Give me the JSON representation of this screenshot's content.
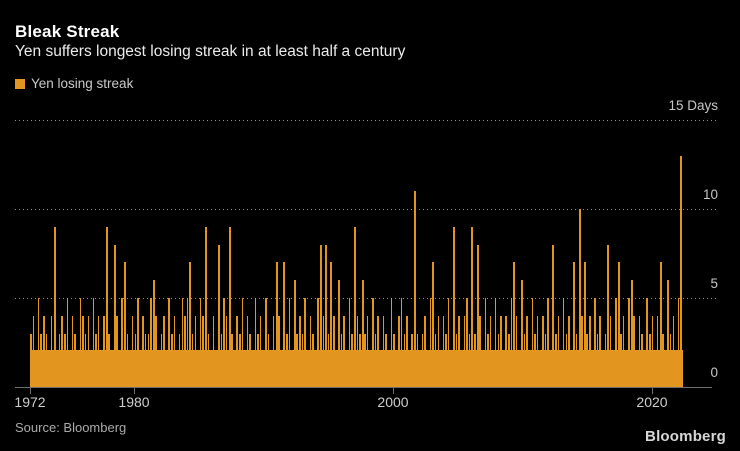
{
  "chart_data": {
    "type": "bar",
    "title": "Bleak Streak",
    "subtitle": "Yen suffers longest losing streak in at least half a century",
    "legend": [
      {
        "label": "Yen losing streak",
        "color": "#e2961f"
      }
    ],
    "x_axis": {
      "tick_labels": [
        "1972",
        "1980",
        "2000",
        "2020"
      ],
      "tick_years": [
        1972,
        1980,
        2000,
        2020
      ],
      "range_years": [
        1972,
        2022.4
      ]
    },
    "y_axis": {
      "ticks": [
        0,
        5,
        10,
        15
      ],
      "top_tick_label": "15 Days",
      "unit": "Days",
      "ylim": [
        0,
        15.5
      ],
      "gridlines": "dotted",
      "labels_position": "right"
    },
    "series": [
      {
        "name": "Yen losing streak",
        "max_streak_days": 13,
        "base_density_band_days": 2.1,
        "notable_streaks": [
          {
            "year": 1974,
            "days": 9
          },
          {
            "year": 1978,
            "days": 9
          },
          {
            "year": 1985,
            "days": 9
          },
          {
            "year": 1987,
            "days": 9
          },
          {
            "year": 1994,
            "days": 8
          },
          {
            "year": 1997,
            "days": 9
          },
          {
            "year": 2001,
            "days": 11
          },
          {
            "year": 2003,
            "days": 9
          },
          {
            "year": 2006,
            "days": 9
          },
          {
            "year": 2012,
            "days": 8
          },
          {
            "year": 2014,
            "days": 10
          },
          {
            "year": 2016,
            "days": 8
          },
          {
            "year": 2022,
            "days": 13
          }
        ],
        "bars_encoded": {
          "format": "one hex digit per losing-streak bar (length in days), bars evenly spaced across range_years",
          "heights": "34253432492343524325434253424932842573243524335642342534235457342549324283549324352432534253247427352634352432584837426342539436342534243253245342 3b32342573424352934245393842534253424357426342534243528342534273a47342534238425734256424325342473263425d"
        }
      }
    ],
    "colors": {
      "background": "#000000",
      "bar": "#e2961f",
      "title_text": "#ffffff",
      "subtitle_text": "#ebebeb",
      "legend_text": "#c9c9c9",
      "axis_text": "#c6c6c6",
      "gridline": "#8f8f8f",
      "axis_line": "#6e6e6e",
      "source_text": "#aaaaaa",
      "logo_text": "#d6d6d6"
    }
  },
  "footer": {
    "source": "Source: Bloomberg",
    "logo": "Bloomberg"
  }
}
